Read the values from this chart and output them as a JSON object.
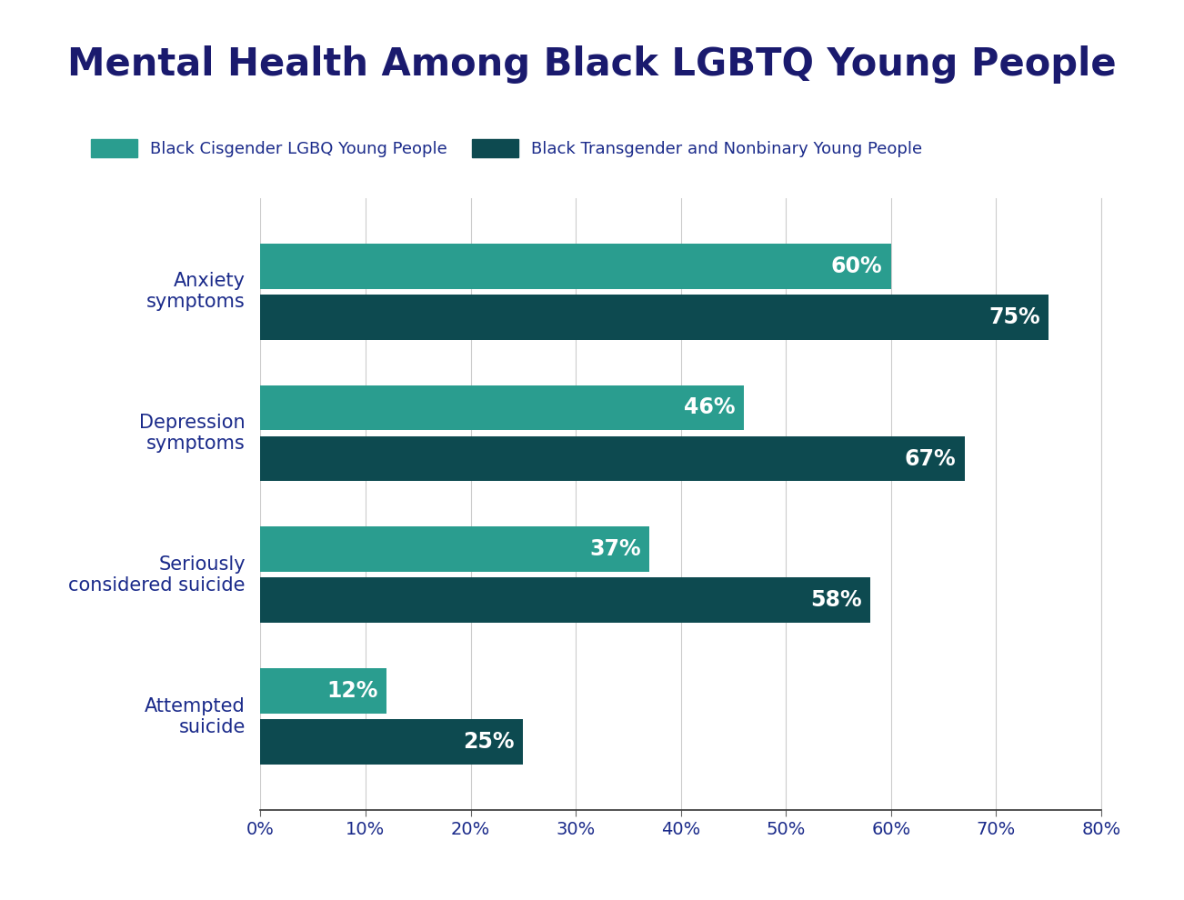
{
  "title": "Mental Health Among Black LGBTQ Young People",
  "title_color": "#1a1a6e",
  "title_fontsize": 30,
  "background_color": "#ffffff",
  "categories": [
    "Anxiety\nsymptoms",
    "Depression\nsymptoms",
    "Seriously\nconsidered suicide",
    "Attempted\nsuicide"
  ],
  "cisgender_values": [
    60,
    46,
    37,
    12
  ],
  "transgender_values": [
    75,
    67,
    58,
    25
  ],
  "cisgender_color": "#2a9d8f",
  "transgender_color": "#0d4a50",
  "label_color": "#ffffff",
  "label_fontsize": 17,
  "axis_label_color": "#1a2a8a",
  "tick_label_color": "#1a2a8a",
  "legend_label1": "Black Cisgender LGBQ Young People",
  "legend_label2": "Black Transgender and Nonbinary Young People",
  "xlim": [
    0,
    80
  ],
  "xticks": [
    0,
    10,
    20,
    30,
    40,
    50,
    60,
    70,
    80
  ],
  "xtick_labels": [
    "0%",
    "10%",
    "20%",
    "30%",
    "40%",
    "50%",
    "60%",
    "70%",
    "80%"
  ],
  "bar_height": 0.32,
  "bar_gap": 0.04
}
